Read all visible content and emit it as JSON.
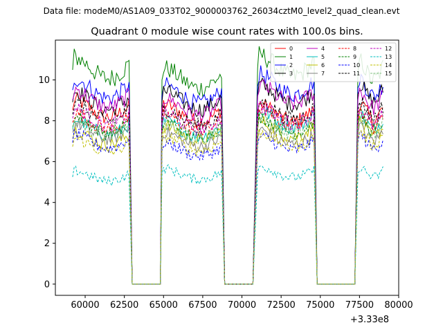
{
  "header": {
    "data_file": "Data file: modeM0/AS1A09_033T02_9000003762_26034cztM0_level2_quad_clean.evt"
  },
  "chart_data": {
    "type": "line",
    "title": "Quadrant 0 module wise count rates with 100.0s bins.",
    "xlabel": "",
    "ylabel": "",
    "x_offset_label": "+3.33e8",
    "xlim": [
      58100,
      80000
    ],
    "ylim": [
      -0.55,
      11.95
    ],
    "xticks": [
      60000,
      62500,
      65000,
      67500,
      70000,
      72500,
      75000,
      77500,
      80000
    ],
    "xtick_labels": [
      "60000",
      "62500",
      "65000",
      "67500",
      "70000",
      "72500",
      "75000",
      "77500",
      "80000"
    ],
    "yticks": [
      0,
      2,
      4,
      6,
      8,
      10
    ],
    "ytick_labels": [
      "0",
      "2",
      "4",
      "6",
      "8",
      "10"
    ],
    "legend": {
      "position": "top-right",
      "columns": 4,
      "entries": [
        "0",
        "1",
        "2",
        "3",
        "4",
        "5",
        "6",
        "7",
        "8",
        "9",
        "10",
        "11",
        "12",
        "13",
        "14",
        "15"
      ]
    },
    "time_segments": [
      {
        "start": 59200,
        "end": 62800
      },
      {
        "start": 63000,
        "end": 64800
      },
      {
        "start": 64900,
        "end": 68700
      },
      {
        "start": 68900,
        "end": 70900
      },
      {
        "start": 71000,
        "end": 74600
      },
      {
        "start": 74800,
        "end": 77300
      },
      {
        "start": 77400,
        "end": 79000
      }
    ],
    "series": [
      {
        "name": "0",
        "color": "#ff0000",
        "dashed": false,
        "levels": [
          8.6,
          0,
          8.4,
          0,
          8.4,
          0,
          8.5
        ]
      },
      {
        "name": "1",
        "color": "#008000",
        "dashed": false,
        "levels": [
          10.6,
          0,
          10.1,
          0,
          10.7,
          0,
          10.5
        ]
      },
      {
        "name": "2",
        "color": "#0000ff",
        "dashed": false,
        "levels": [
          9.6,
          0,
          9.3,
          0,
          9.8,
          0,
          9.7
        ]
      },
      {
        "name": "3",
        "color": "#000000",
        "dashed": false,
        "levels": [
          9.0,
          0,
          9.0,
          0,
          9.3,
          0,
          9.4
        ]
      },
      {
        "name": "4",
        "color": "#bf00bf",
        "dashed": false,
        "levels": [
          9.1,
          0,
          8.7,
          0,
          9.3,
          0,
          9.1
        ]
      },
      {
        "name": "5",
        "color": "#00bfbf",
        "dashed": false,
        "levels": [
          7.7,
          0,
          7.6,
          0,
          8.1,
          0,
          8.0
        ]
      },
      {
        "name": "6",
        "color": "#bfbf00",
        "dashed": false,
        "levels": [
          7.2,
          0,
          7.4,
          0,
          7.6,
          0,
          7.6
        ]
      },
      {
        "name": "7",
        "color": "#808080",
        "dashed": false,
        "levels": [
          7.5,
          0,
          7.1,
          0,
          7.2,
          0,
          7.4
        ]
      },
      {
        "name": "8",
        "color": "#ff0000",
        "dashed": true,
        "levels": [
          8.0,
          0,
          7.9,
          0,
          8.2,
          0,
          8.1
        ]
      },
      {
        "name": "9",
        "color": "#008000",
        "dashed": true,
        "levels": [
          7.8,
          0,
          7.6,
          0,
          7.8,
          0,
          7.9
        ]
      },
      {
        "name": "10",
        "color": "#0000ff",
        "dashed": true,
        "levels": [
          7.0,
          0,
          6.6,
          0,
          6.9,
          0,
          7.0
        ]
      },
      {
        "name": "11",
        "color": "#000000",
        "dashed": true,
        "levels": [
          8.4,
          0,
          8.2,
          0,
          8.5,
          0,
          8.6
        ]
      },
      {
        "name": "12",
        "color": "#bf00bf",
        "dashed": true,
        "levels": [
          8.2,
          0,
          8.0,
          0,
          8.3,
          0,
          8.2
        ]
      },
      {
        "name": "13",
        "color": "#00bfbf",
        "dashed": true,
        "levels": [
          5.3,
          0,
          5.4,
          0,
          5.5,
          0,
          5.5
        ]
      },
      {
        "name": "14",
        "color": "#bfbf00",
        "dashed": true,
        "levels": [
          6.8,
          0,
          6.9,
          0,
          7.1,
          0,
          7.2
        ]
      },
      {
        "name": "15",
        "color": "#80c080",
        "dashed": true,
        "levels": [
          7.6,
          0,
          7.5,
          0,
          7.7,
          0,
          7.8
        ]
      }
    ]
  }
}
